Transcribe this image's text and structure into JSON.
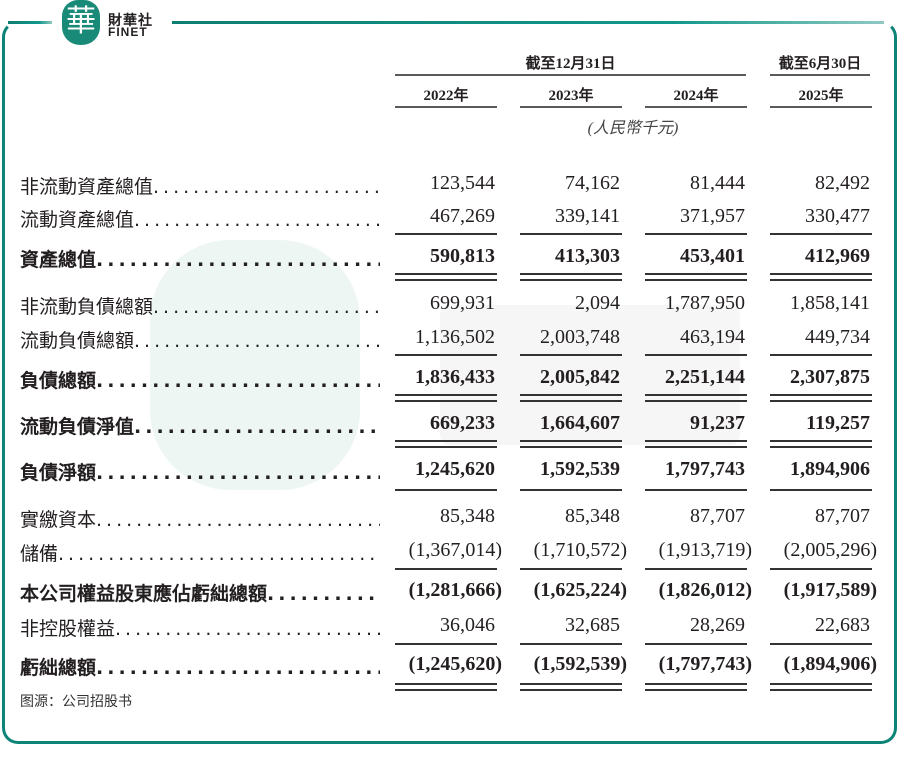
{
  "brand": {
    "seal_char": "華",
    "name_cn": "財華社",
    "name_en": "FINET",
    "accent": "#0d8478"
  },
  "header": {
    "group1": "截至12月31日",
    "group2": "截至6月30日",
    "years": [
      "2022年",
      "2023年",
      "2024年",
      "2025年"
    ],
    "unit": "(人民幣千元)"
  },
  "rows": [
    {
      "label": "非流動資產總值",
      "bold": false,
      "values": [
        "123,544",
        "74,162",
        "81,444",
        "82,492"
      ]
    },
    {
      "label": "流動資產總值",
      "bold": false,
      "values": [
        "467,269",
        "339,141",
        "371,957",
        "330,477"
      ]
    },
    {
      "label": "資產總值",
      "bold": true,
      "values": [
        "590,813",
        "413,303",
        "453,401",
        "412,969"
      ]
    },
    {
      "label": "非流動負債總額",
      "bold": false,
      "values": [
        "699,931",
        "2,094",
        "1,787,950",
        "1,858,141"
      ]
    },
    {
      "label": "流動負債總額",
      "bold": false,
      "values": [
        "1,136,502",
        "2,003,748",
        "463,194",
        "449,734"
      ]
    },
    {
      "label": "負債總額",
      "bold": true,
      "values": [
        "1,836,433",
        "2,005,842",
        "2,251,144",
        "2,307,875"
      ]
    },
    {
      "label": "流動負債淨值",
      "bold": true,
      "values": [
        "669,233",
        "1,664,607",
        "91,237",
        "119,257"
      ]
    },
    {
      "label": "負債淨額",
      "bold": true,
      "values": [
        "1,245,620",
        "1,592,539",
        "1,797,743",
        "1,894,906"
      ]
    },
    {
      "label": "實繳資本",
      "bold": false,
      "values": [
        "85,348",
        "85,348",
        "87,707",
        "87,707"
      ]
    },
    {
      "label": "儲備",
      "bold": false,
      "values": [
        "(1,367,014)",
        "(1,710,572)",
        "(1,913,719)",
        "(2,005,296)"
      ]
    },
    {
      "label": "本公司權益股東應佔虧絀總額",
      "bold": true,
      "values": [
        "(1,281,666)",
        "(1,625,224)",
        "(1,826,012)",
        "(1,917,589)"
      ]
    },
    {
      "label": "非控股權益",
      "bold": false,
      "values": [
        "36,046",
        "32,685",
        "28,269",
        "22,683"
      ]
    },
    {
      "label": "虧絀總額",
      "bold": true,
      "values": [
        "(1,245,620)",
        "(1,592,539)",
        "(1,797,743)",
        "(1,894,906)"
      ]
    }
  ],
  "source": "图源：公司招股书"
}
